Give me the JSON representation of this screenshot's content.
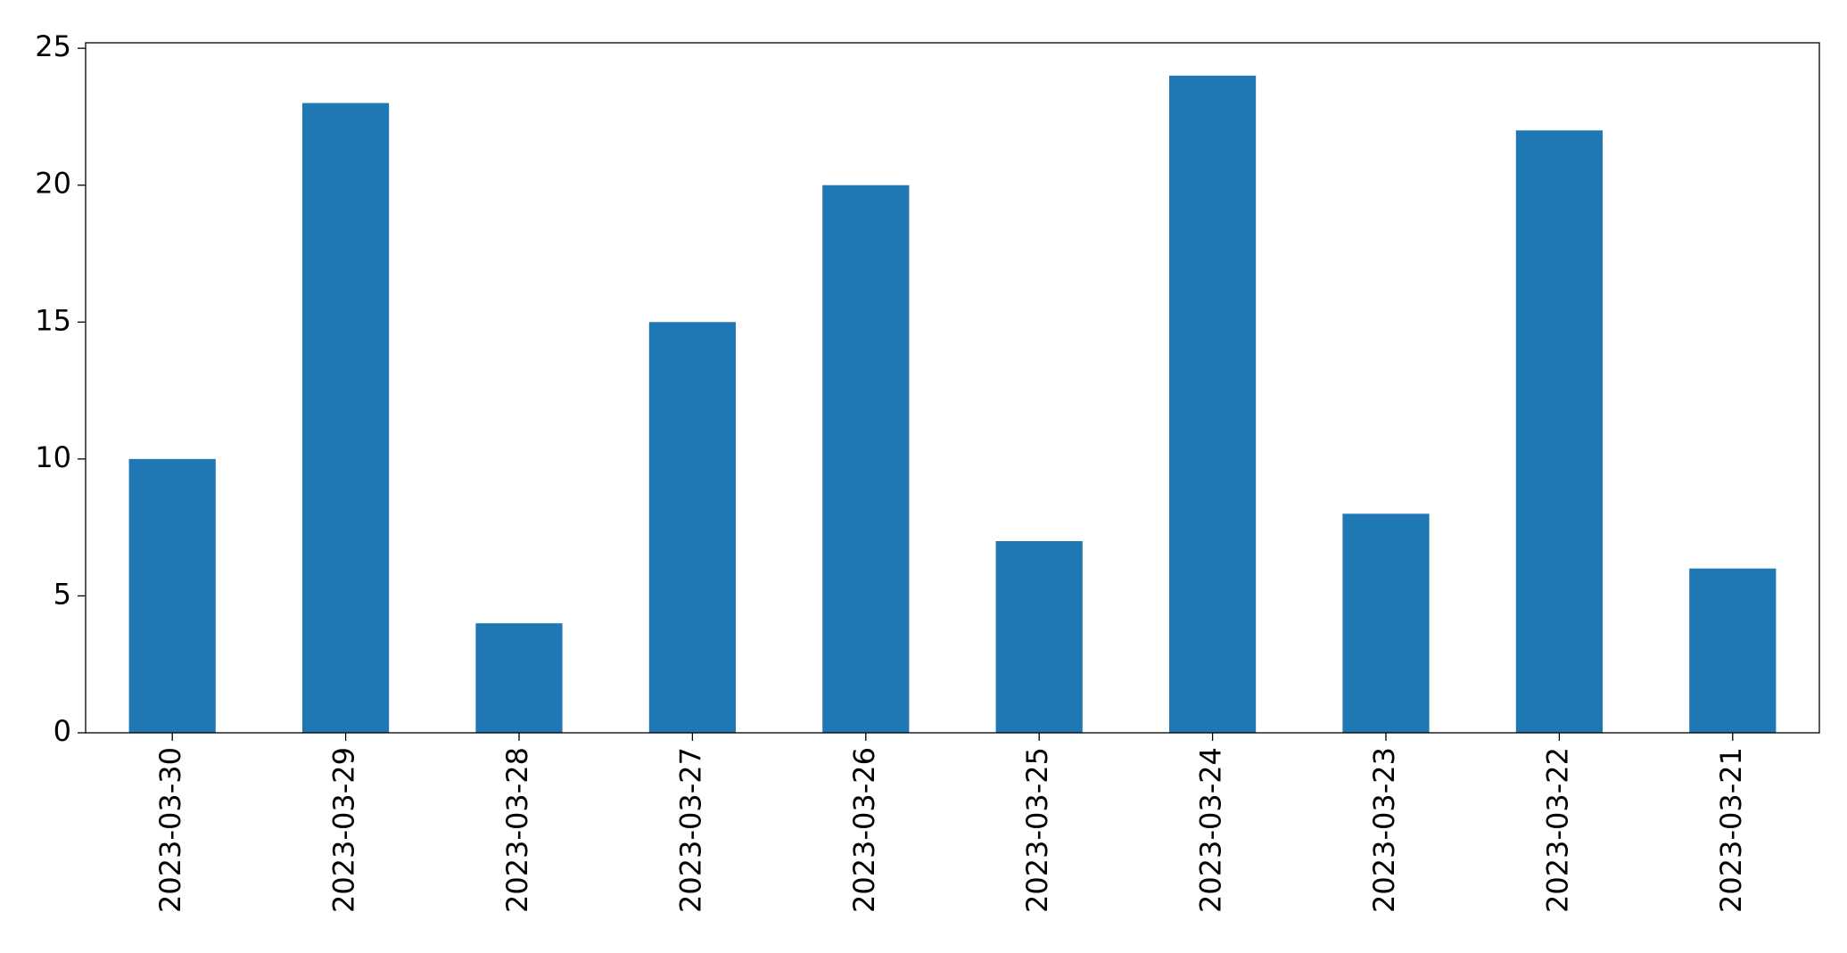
{
  "chart_data": {
    "type": "bar",
    "categories": [
      "2023-03-30",
      "2023-03-29",
      "2023-03-28",
      "2023-03-27",
      "2023-03-26",
      "2023-03-25",
      "2023-03-24",
      "2023-03-23",
      "2023-03-22",
      "2023-03-21"
    ],
    "values": [
      10,
      23,
      4,
      15,
      20,
      7,
      24,
      8,
      22,
      6
    ],
    "color": "#1f77b4",
    "ylim": [
      0,
      25.2
    ],
    "yticks": [
      0,
      5,
      10,
      15,
      20,
      25
    ],
    "grid": false
  }
}
